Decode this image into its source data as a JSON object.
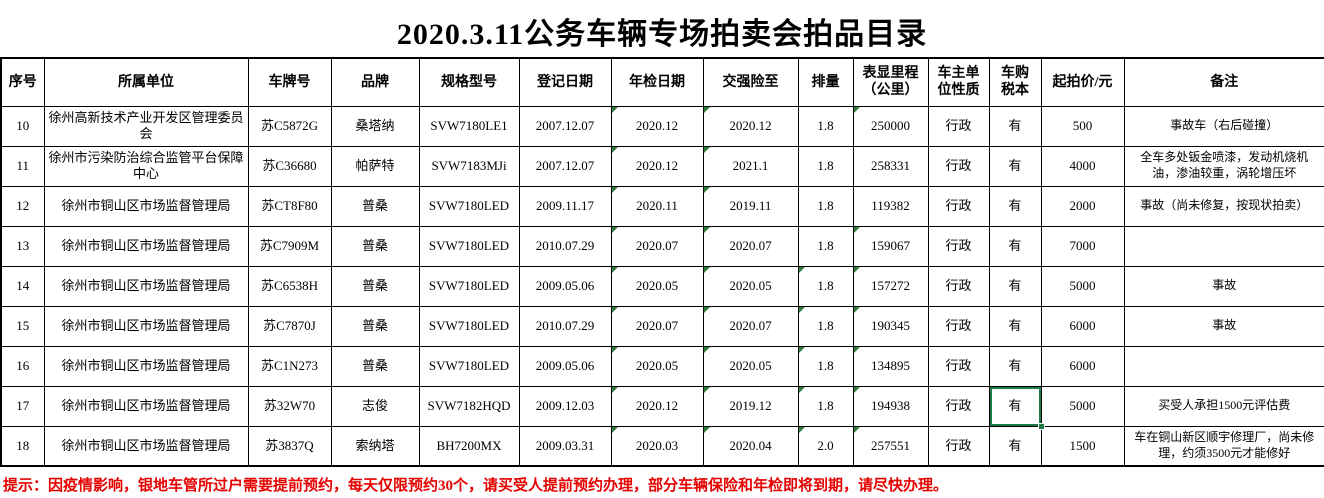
{
  "title": "2020.3.11公务车辆专场拍卖会拍品目录",
  "notice": "提示：因疫情影响，银地车管所过户需要提前预约，每天仅限预约30个，请买受人提前预约办理，部分车辆保险和年检即将到期，请尽快办理。",
  "colors": {
    "selection_green": "#1f7a46",
    "indicator_green": "#2f7d3b",
    "note_red": "#e60000",
    "grid_black": "#000000"
  },
  "table": {
    "columns": [
      {
        "key": "no",
        "label": "序号"
      },
      {
        "key": "unit",
        "label": "所属单位"
      },
      {
        "key": "plate",
        "label": "车牌号"
      },
      {
        "key": "brand",
        "label": "品牌"
      },
      {
        "key": "model",
        "label": "规格型号"
      },
      {
        "key": "reg_date",
        "label": "登记日期"
      },
      {
        "key": "annual_date",
        "label": "年检日期"
      },
      {
        "key": "insurance_until",
        "label": "交强险至"
      },
      {
        "key": "displacement",
        "label": "排量"
      },
      {
        "key": "mileage",
        "label": "表显里程\n（公里）"
      },
      {
        "key": "owner_type",
        "label": "车主单\n位性质"
      },
      {
        "key": "tax_book",
        "label": "车购\n税本"
      },
      {
        "key": "start_price",
        "label": "起拍价/元"
      },
      {
        "key": "remark",
        "label": "备注"
      }
    ],
    "rows": [
      {
        "no": "10",
        "unit": "徐州高新技术产业开发区管理委员会",
        "plate": "苏C5872G",
        "brand": "桑塔纳",
        "model": "SVW7180LE1",
        "reg_date": "2007.12.07",
        "annual_date": "2020.12",
        "insurance_until": "2020.12",
        "displacement": "1.8",
        "mileage": "250000",
        "owner_type": "行政",
        "tax_book": "有",
        "start_price": "500",
        "remark": "事故车（右后碰撞）",
        "indicators": [
          "annual_date",
          "insurance_until",
          "mileage"
        ]
      },
      {
        "no": "11",
        "unit": "徐州市污染防治综合监管平台保障中心",
        "plate": "苏C36680",
        "brand": "帕萨特",
        "model": "SVW7183MJi",
        "reg_date": "2007.12.07",
        "annual_date": "2020.12",
        "insurance_until": "2021.1",
        "displacement": "1.8",
        "mileage": "258331",
        "owner_type": "行政",
        "tax_book": "有",
        "start_price": "4000",
        "remark": "全车多处钣金喷漆，发动机烧机油，渗油较重，涡轮增压坏",
        "indicators": [
          "annual_date",
          "insurance_until"
        ]
      },
      {
        "no": "12",
        "unit": "徐州市铜山区市场监督管理局",
        "plate": "苏CT8F80",
        "brand": "普桑",
        "model": "SVW7180LED",
        "reg_date": "2009.11.17",
        "annual_date": "2020.11",
        "insurance_until": "2019.11",
        "displacement": "1.8",
        "mileage": "119382",
        "owner_type": "行政",
        "tax_book": "有",
        "start_price": "2000",
        "remark": "事故（尚未修复，按现状拍卖）",
        "indicators": [
          "annual_date",
          "insurance_until"
        ]
      },
      {
        "no": "13",
        "unit": "徐州市铜山区市场监督管理局",
        "plate": "苏C7909M",
        "brand": "普桑",
        "model": "SVW7180LED",
        "reg_date": "2010.07.29",
        "annual_date": "2020.07",
        "insurance_until": "2020.07",
        "displacement": "1.8",
        "mileage": "159067",
        "owner_type": "行政",
        "tax_book": "有",
        "start_price": "7000",
        "remark": "",
        "indicators": [
          "annual_date",
          "insurance_until",
          "mileage"
        ]
      },
      {
        "no": "14",
        "unit": "徐州市铜山区市场监督管理局",
        "plate": "苏C6538H",
        "brand": "普桑",
        "model": "SVW7180LED",
        "reg_date": "2009.05.06",
        "annual_date": "2020.05",
        "insurance_until": "2020.05",
        "displacement": "1.8",
        "mileage": "157272",
        "owner_type": "行政",
        "tax_book": "有",
        "start_price": "5000",
        "remark": "事故",
        "indicators": [
          "annual_date",
          "insurance_until",
          "displacement",
          "mileage"
        ]
      },
      {
        "no": "15",
        "unit": "徐州市铜山区市场监督管理局",
        "plate": "苏C7870J",
        "brand": "普桑",
        "model": "SVW7180LED",
        "reg_date": "2010.07.29",
        "annual_date": "2020.07",
        "insurance_until": "2020.07",
        "displacement": "1.8",
        "mileage": "190345",
        "owner_type": "行政",
        "tax_book": "有",
        "start_price": "6000",
        "remark": "事故",
        "indicators": [
          "annual_date",
          "insurance_until",
          "displacement",
          "mileage"
        ]
      },
      {
        "no": "16",
        "unit": "徐州市铜山区市场监督管理局",
        "plate": "苏C1N273",
        "brand": "普桑",
        "model": "SVW7180LED",
        "reg_date": "2009.05.06",
        "annual_date": "2020.05",
        "insurance_until": "2020.05",
        "displacement": "1.8",
        "mileage": "134895",
        "owner_type": "行政",
        "tax_book": "有",
        "start_price": "6000",
        "remark": "",
        "indicators": [
          "annual_date",
          "insurance_until",
          "displacement",
          "mileage"
        ]
      },
      {
        "no": "17",
        "unit": "徐州市铜山区市场监督管理局",
        "plate": "苏32W70",
        "brand": "志俊",
        "model": "SVW7182HQD",
        "reg_date": "2009.12.03",
        "annual_date": "2020.12",
        "insurance_until": "2019.12",
        "displacement": "1.8",
        "mileage": "194938",
        "owner_type": "行政",
        "tax_book": "有",
        "start_price": "5000",
        "remark": "买受人承担1500元评估费",
        "indicators": [
          "annual_date",
          "insurance_until",
          "displacement",
          "mileage"
        ]
      },
      {
        "no": "18",
        "unit": "徐州市铜山区市场监督管理局",
        "plate": "苏3837Q",
        "brand": "索纳塔",
        "model": "BH7200MX",
        "reg_date": "2009.03.31",
        "annual_date": "2020.03",
        "insurance_until": "2020.04",
        "displacement": "2.0",
        "mileage": "257551",
        "owner_type": "行政",
        "tax_book": "有",
        "start_price": "1500",
        "remark": "车在铜山新区顺宇修理厂，尚未修理，约须3500元才能修好",
        "indicators": [
          "annual_date",
          "insurance_until",
          "displacement",
          "mileage"
        ]
      }
    ],
    "selection": {
      "row_no": "17",
      "column": "tax_book"
    }
  }
}
